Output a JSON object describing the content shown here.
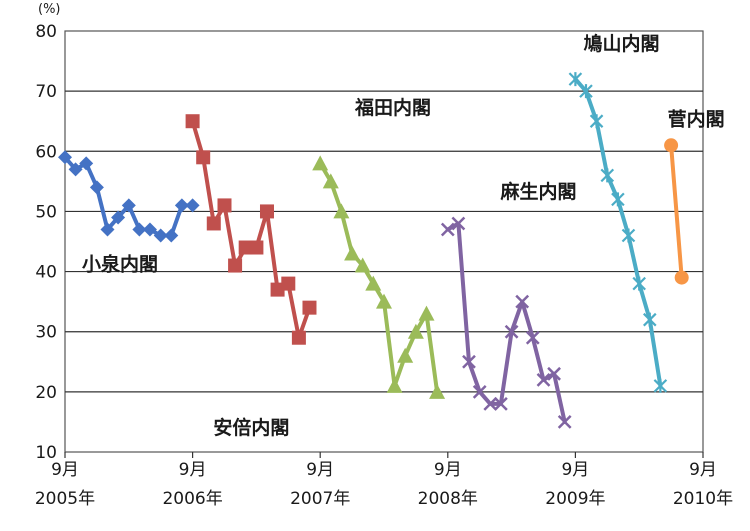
{
  "chart_data": {
    "type": "line",
    "title": "",
    "ylabel": "(%)",
    "xlabel": "",
    "ylim": [
      10,
      80
    ],
    "yticks": [
      10,
      20,
      30,
      40,
      50,
      60,
      70,
      80
    ],
    "xticks": [
      {
        "value": 2005.667,
        "line1": "9月",
        "line2": "2005年"
      },
      {
        "value": 2006.667,
        "line1": "9月",
        "line2": "2006年"
      },
      {
        "value": 2007.667,
        "line1": "9月",
        "line2": "2007年"
      },
      {
        "value": 2008.667,
        "line1": "9月",
        "line2": "2008年"
      },
      {
        "value": 2009.667,
        "line1": "9月",
        "line2": "2009年"
      },
      {
        "value": 2010.667,
        "line1": "9月",
        "line2": "2010年"
      }
    ],
    "xlim": [
      2005.667,
      2010.667
    ],
    "grid": true,
    "series": [
      {
        "name": "小泉内閣",
        "color": "#4472c4",
        "marker": "diamond",
        "label_pos": [
          2005.8,
          40.2
        ],
        "x": [
          2005.667,
          2005.75,
          2005.833,
          2005.917,
          2006.0,
          2006.083,
          2006.167,
          2006.25,
          2006.333,
          2006.417,
          2006.5,
          2006.583,
          2006.667
        ],
        "y": [
          59,
          57,
          58,
          54,
          47,
          49,
          51,
          47,
          47,
          46,
          46,
          51,
          51
        ]
      },
      {
        "name": "安倍内閣",
        "color": "#c0504d",
        "marker": "square",
        "label_pos": [
          2006.83,
          13.0
        ],
        "x": [
          2006.667,
          2006.75,
          2006.833,
          2006.917,
          2007.0,
          2007.083,
          2007.167,
          2007.25,
          2007.333,
          2007.417,
          2007.5,
          2007.583
        ],
        "y": [
          65,
          59,
          48,
          51,
          41,
          44,
          44,
          50,
          37,
          38,
          29,
          34
        ]
      },
      {
        "name": "福田内閣",
        "color": "#9bbb59",
        "marker": "triangle",
        "label_pos": [
          2007.94,
          66.2
        ],
        "x": [
          2007.667,
          2007.75,
          2007.833,
          2007.917,
          2008.0,
          2008.083,
          2008.167,
          2008.25,
          2008.333,
          2008.417,
          2008.5,
          2008.583
        ],
        "y": [
          58,
          55,
          50,
          43,
          41,
          38,
          35,
          21,
          26,
          30,
          33,
          20
        ]
      },
      {
        "name": "麻生内閣",
        "color": "#8064a2",
        "marker": "x",
        "label_pos": [
          2009.08,
          52.2
        ],
        "x": [
          2008.667,
          2008.75,
          2008.833,
          2008.917,
          2009.0,
          2009.083,
          2009.167,
          2009.25,
          2009.333,
          2009.417,
          2009.5,
          2009.583
        ],
        "y": [
          47,
          48,
          25,
          20,
          18,
          18,
          30,
          35,
          29,
          22,
          23,
          15
        ]
      },
      {
        "name": "鳩山内閣",
        "color": "#4bacc6",
        "marker": "star",
        "label_pos": [
          2009.73,
          76.8
        ],
        "x": [
          2009.667,
          2009.75,
          2009.833,
          2009.917,
          2010.0,
          2010.083,
          2010.167,
          2010.25,
          2010.333
        ],
        "y": [
          72,
          70,
          65,
          56,
          52,
          46,
          38,
          32,
          21
        ]
      },
      {
        "name": "菅内閣",
        "color": "#f79646",
        "marker": "circle",
        "label_pos": [
          2010.39,
          64.3
        ],
        "x": [
          2010.417,
          2010.5
        ],
        "y": [
          61,
          39
        ]
      }
    ]
  }
}
